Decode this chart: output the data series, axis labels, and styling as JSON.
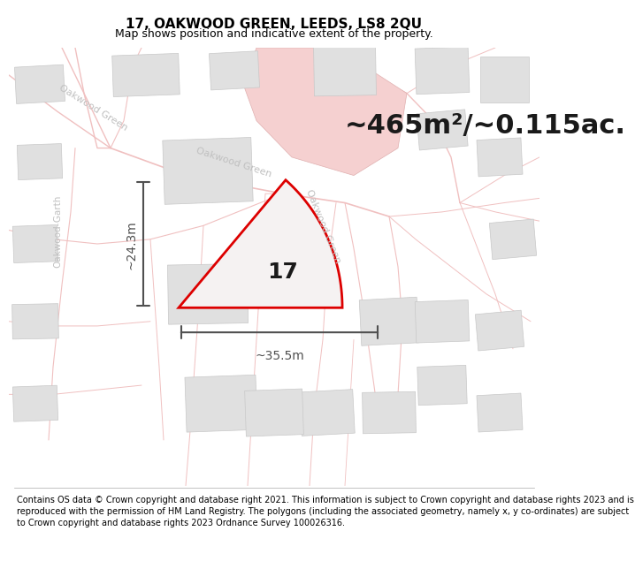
{
  "title": "17, OAKWOOD GREEN, LEEDS, LS8 2QU",
  "subtitle": "Map shows position and indicative extent of the property.",
  "area_text": "~465m²/~0.115ac.",
  "property_number": "17",
  "width_label": "~35.5m",
  "height_label": "~24.3m",
  "footer": "Contains OS data © Crown copyright and database right 2021. This information is subject to Crown copyright and database rights 2023 and is reproduced with the permission of HM Land Registry. The polygons (including the associated geometry, namely x, y co-ordinates) are subject to Crown copyright and database rights 2023 Ordnance Survey 100026316.",
  "bg_color": "#ffffff",
  "map_bg": "#ffffff",
  "property_fill": "#f5f0f0",
  "property_edge": "#dd0000",
  "road_color": "#f0c0c0",
  "road_lw_main": 1.2,
  "road_lw_small": 0.7,
  "building_fill": "#e0e0e0",
  "building_edge": "#c8c8c8",
  "pink_fill": "#f5d0d0",
  "pink_edge": "#e0b0b0",
  "road_label_color": "#c0c0c0",
  "dim_color": "#505050",
  "title_fontsize": 11,
  "subtitle_fontsize": 9,
  "area_fontsize": 22,
  "number_fontsize": 18,
  "dim_fontsize": 10,
  "footer_fontsize": 7,
  "road_label_fontsize": 8,
  "road_label_fontsize2": 7.5
}
